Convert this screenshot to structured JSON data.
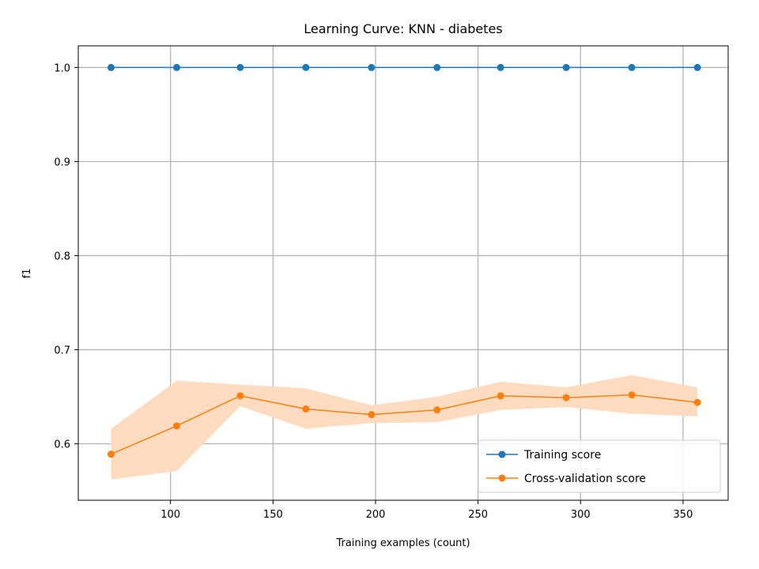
{
  "chart_data": {
    "type": "line",
    "title": "Learning Curve: KNN - diabetes",
    "xlabel": "Training examples (count)",
    "ylabel": "f1",
    "xlim": [
      55,
      372
    ],
    "ylim": [
      0.54,
      1.023
    ],
    "xticks": [
      100,
      150,
      200,
      250,
      300,
      350
    ],
    "yticks": [
      0.6,
      0.7,
      0.8,
      0.9,
      1.0
    ],
    "xtick_labels": [
      "100",
      "150",
      "200",
      "250",
      "300",
      "350"
    ],
    "ytick_labels": [
      "0.6",
      "0.7",
      "0.8",
      "0.9",
      "1.0"
    ],
    "grid": true,
    "legend_position": "lower-right",
    "x": [
      71,
      103,
      134,
      166,
      198,
      230,
      261,
      293,
      325,
      357
    ],
    "series": [
      {
        "name": "Training score",
        "color": "#1f77b4",
        "values": [
          1.0,
          1.0,
          1.0,
          1.0,
          1.0,
          1.0,
          1.0,
          1.0,
          1.0,
          1.0
        ],
        "lower": [
          1.0,
          1.0,
          1.0,
          1.0,
          1.0,
          1.0,
          1.0,
          1.0,
          1.0,
          1.0
        ],
        "upper": [
          1.0,
          1.0,
          1.0,
          1.0,
          1.0,
          1.0,
          1.0,
          1.0,
          1.0,
          1.0
        ]
      },
      {
        "name": "Cross-validation score",
        "color": "#ff7f0e",
        "band_color": "#ffdcc0",
        "values": [
          0.589,
          0.619,
          0.651,
          0.637,
          0.631,
          0.636,
          0.651,
          0.649,
          0.652,
          0.644
        ],
        "lower": [
          0.562,
          0.571,
          0.64,
          0.616,
          0.622,
          0.623,
          0.636,
          0.639,
          0.632,
          0.629
        ],
        "upper": [
          0.616,
          0.667,
          0.663,
          0.659,
          0.641,
          0.65,
          0.666,
          0.66,
          0.673,
          0.66
        ]
      }
    ]
  }
}
